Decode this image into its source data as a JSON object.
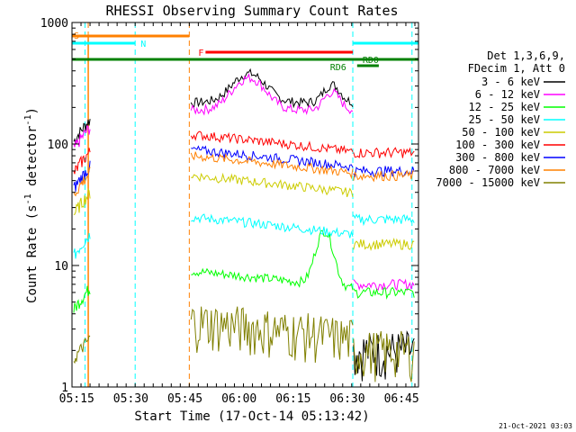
{
  "chart_data": {
    "type": "line",
    "title": "RHESSI Observing Summary Count Rates",
    "xlabel": "Start Time (17-Oct-14 05:13:42)",
    "ylabel": "Count Rate (s⁻¹ detector⁻¹)",
    "ylabel_main": "Count Rate (s",
    "ylabel_exp": "-1",
    "ylabel_mid": " detector",
    "ylabel_exp2": "-1",
    "ylabel_end": ")",
    "yscale": "log",
    "xlim_minutes": [
      0,
      96
    ],
    "ylim": [
      1,
      1000
    ],
    "x_tick_labels": [
      "05:15",
      "05:30",
      "05:45",
      "06:00",
      "06:15",
      "06:30",
      "06:45"
    ],
    "x_tick_minutes": [
      1.3,
      16.3,
      31.3,
      46.3,
      61.3,
      76.3,
      91.3
    ],
    "y_tick_labels": [
      "1",
      "10",
      "100",
      "1000"
    ],
    "y_tick_values": [
      1,
      10,
      100,
      1000
    ],
    "legend_header": [
      "Det 1,3,6,9,",
      "FDecim 1, Att 0"
    ],
    "series": [
      {
        "name": "3 - 6 keV",
        "color": "#000000",
        "base": 220,
        "peak": 380,
        "after": 2
      },
      {
        "name": "6 - 12 keV",
        "color": "#ff00ff",
        "base": 190,
        "peak": 350,
        "after": 7
      },
      {
        "name": "12 - 25 keV",
        "color": "#00ff00",
        "base": 9,
        "peak": 25,
        "after": 6
      },
      {
        "name": "25 - 50 keV",
        "color": "#00ffff",
        "base": 25,
        "peak": 27,
        "after": 24
      },
      {
        "name": "50 - 100 keV",
        "color": "#cccc00",
        "base": 55,
        "peak": 60,
        "after": 15
      },
      {
        "name": "100 - 300 keV",
        "color": "#ff0000",
        "base": 120,
        "peak": 110,
        "after": 85
      },
      {
        "name": "300 - 800 keV",
        "color": "#0000ff",
        "base": 90,
        "peak": 85,
        "after": 60
      },
      {
        "name": "800 - 7000 keV",
        "color": "#ff8000",
        "base": 80,
        "peak": 70,
        "after": 55
      },
      {
        "name": "7000 - 15000 keV",
        "color": "#808000",
        "base": 3.5,
        "peak": 5,
        "after": 2
      }
    ],
    "annotations": [
      {
        "label": "S",
        "color": "#ff8000"
      },
      {
        "label": "N",
        "color": "#00ffff"
      },
      {
        "label": "F",
        "color": "#ff0000"
      },
      {
        "label": "RD6",
        "color": "#008000"
      },
      {
        "label": "RD0",
        "color": "#008000"
      }
    ],
    "timestamp": "21-Oct-2021 03:03"
  }
}
